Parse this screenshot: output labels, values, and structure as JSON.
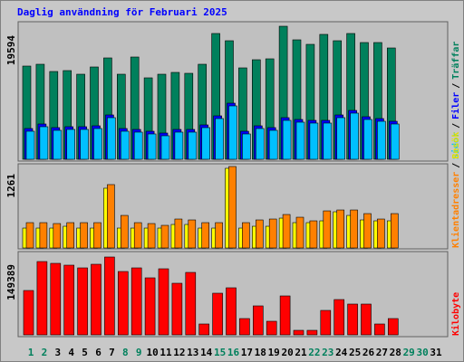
{
  "chart_data": [
    {
      "type": "bar",
      "title": "Daglig användning för Februari 2025",
      "categories": [
        "1",
        "2",
        "3",
        "4",
        "5",
        "6",
        "7",
        "8",
        "9",
        "10",
        "11",
        "12",
        "13",
        "14",
        "15",
        "16",
        "17",
        "18",
        "19",
        "20",
        "21",
        "22",
        "23",
        "24",
        "25",
        "26",
        "27",
        "28",
        "29",
        "30",
        "31"
      ],
      "label_colors": [
        "#00805c",
        "#00805c",
        "#000000",
        "#000000",
        "#000000",
        "#000000",
        "#000000",
        "#00805c",
        "#00805c",
        "#000000",
        "#000000",
        "#000000",
        "#000000",
        "#000000",
        "#00805c",
        "#00805c",
        "#000000",
        "#000000",
        "#000000",
        "#000000",
        "#000000",
        "#00805c",
        "#00805c",
        "#000000",
        "#000000",
        "#000000",
        "#000000",
        "#000000",
        "#00805c",
        "#00805c",
        "#000000"
      ],
      "legend_separator": "/",
      "ylim": [
        0,
        19594
      ],
      "yticks": [
        19594
      ],
      "series": [
        {
          "name": "Träffar",
          "color": "#00805c",
          "values": [
            13729,
            13996,
            12929,
            13063,
            12529,
            13596,
            14929,
            12529,
            15062,
            11996,
            12529,
            12796,
            12663,
            13996,
            18528,
            17461,
            13463,
            14662,
            14796,
            19594,
            17595,
            16928,
            18395,
            17461,
            18528,
            17195,
            17195,
            16395,
            null,
            null,
            null
          ]
        },
        {
          "name": "Filer",
          "color": "#0000ff",
          "values": [
            4532,
            5198,
            4665,
            4798,
            4798,
            4932,
            6531,
            4532,
            4399,
            4132,
            3866,
            4399,
            4399,
            5065,
            6398,
            8264,
            4132,
            4932,
            4665,
            6131,
            5865,
            5732,
            5732,
            6531,
            7198,
            6265,
            5998,
            5598,
            null,
            null,
            null
          ]
        },
        {
          "name": "Sidor",
          "color": "#00c0ff",
          "values": [
            4132,
            4798,
            4265,
            4399,
            4399,
            4532,
            6131,
            4132,
            3999,
            3732,
            3466,
            3999,
            3999,
            4665,
            5998,
            7864,
            3732,
            4532,
            4265,
            5731,
            5465,
            5332,
            5332,
            6131,
            6798,
            5865,
            5598,
            5198,
            null,
            null,
            null
          ]
        }
      ]
    },
    {
      "type": "bar",
      "ylim": [
        0,
        1261
      ],
      "yticks": [
        1261
      ],
      "series": [
        {
          "name": "Besök",
          "color": "#ffff00",
          "values": [
            308,
            308,
            308,
            336,
            308,
            308,
            925,
            308,
            308,
            308,
            308,
            364,
            364,
            308,
            308,
            1233,
            308,
            336,
            336,
            462,
            392,
            392,
            420,
            560,
            504,
            434,
            420,
            420,
            null,
            null,
            null
          ]
        },
        {
          "name": "Klientadresser",
          "color": "#ff8000",
          "values": [
            392,
            392,
            378,
            392,
            392,
            392,
            981,
            504,
            392,
            378,
            350,
            448,
            434,
            392,
            392,
            1261,
            392,
            434,
            448,
            518,
            476,
            420,
            574,
            588,
            588,
            532,
            448,
            532,
            null,
            null,
            null
          ]
        }
      ]
    },
    {
      "type": "bar",
      "ylim": [
        0,
        149389
      ],
      "yticks": [
        149389
      ],
      "series": [
        {
          "name": "Kilobyte",
          "color": "#ff0000",
          "values": [
            85113,
            140697,
            137223,
            133749,
            128538,
            135486,
            149389,
            121590,
            128538,
            109431,
            126801,
            99009,
            119853,
            20844,
            79902,
            90324,
            31266,
            55584,
            26055,
            74691,
            8685,
            8685,
            46899,
            67743,
            59058,
            59058,
            20844,
            31266,
            null,
            null,
            null
          ]
        }
      ]
    }
  ]
}
